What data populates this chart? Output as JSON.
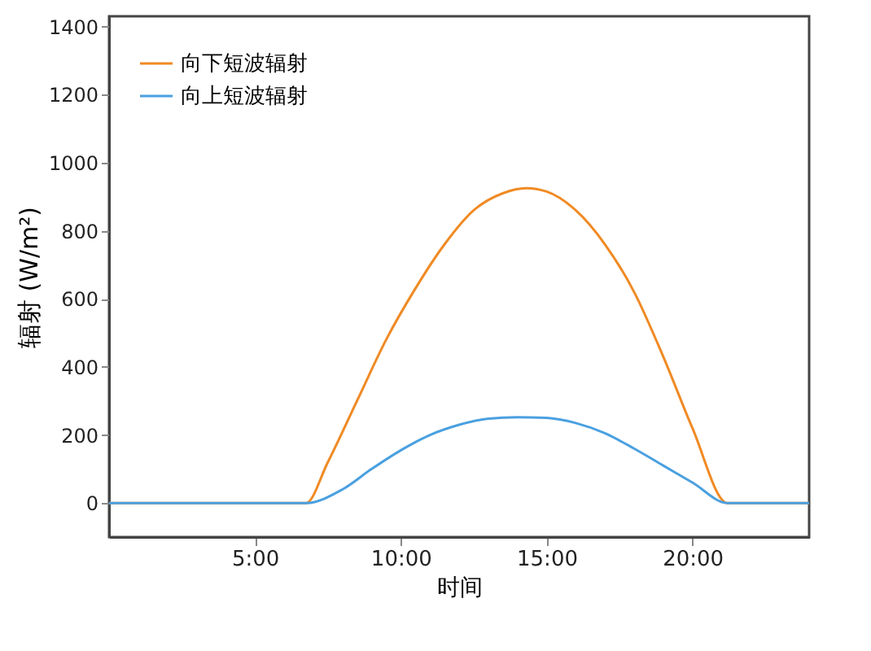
{
  "chart_data": {
    "type": "line",
    "xlabel": "时间",
    "ylabel": "辐射 (W/m²)",
    "xlim": [
      0,
      24
    ],
    "xticks": [
      {
        "value": 5,
        "label": "5:00"
      },
      {
        "value": 10,
        "label": "10:00"
      },
      {
        "value": 15,
        "label": "15:00"
      },
      {
        "value": 20,
        "label": "20:00"
      }
    ],
    "ylim": [
      -100,
      1430
    ],
    "yticks": [
      0,
      200,
      400,
      600,
      800,
      1000,
      1200,
      1400
    ],
    "grid": false,
    "legend": "top left",
    "marker": "none",
    "line_style": "solid",
    "series": [
      {
        "name": "向下短波辐射",
        "color": "#f08a24",
        "x": [
          0,
          6.75,
          7.5,
          8.5,
          9.5,
          10.5,
          11.5,
          12.5,
          13.5,
          14.3,
          15,
          16,
          17,
          18,
          19,
          20,
          21.2,
          24
        ],
        "values": [
          0,
          0,
          120,
          300,
          480,
          630,
          760,
          860,
          910,
          925,
          915,
          860,
          760,
          620,
          430,
          220,
          0,
          0
        ]
      },
      {
        "name": "向上短波辐射",
        "color": "#4aa0e0",
        "x": [
          0,
          6.75,
          8,
          9,
          10,
          11,
          12,
          13,
          14,
          15,
          16,
          17,
          18,
          19,
          20,
          21.2,
          24
        ],
        "values": [
          0,
          0,
          40,
          100,
          155,
          200,
          230,
          248,
          252,
          250,
          235,
          205,
          160,
          110,
          60,
          0,
          0
        ]
      }
    ]
  }
}
